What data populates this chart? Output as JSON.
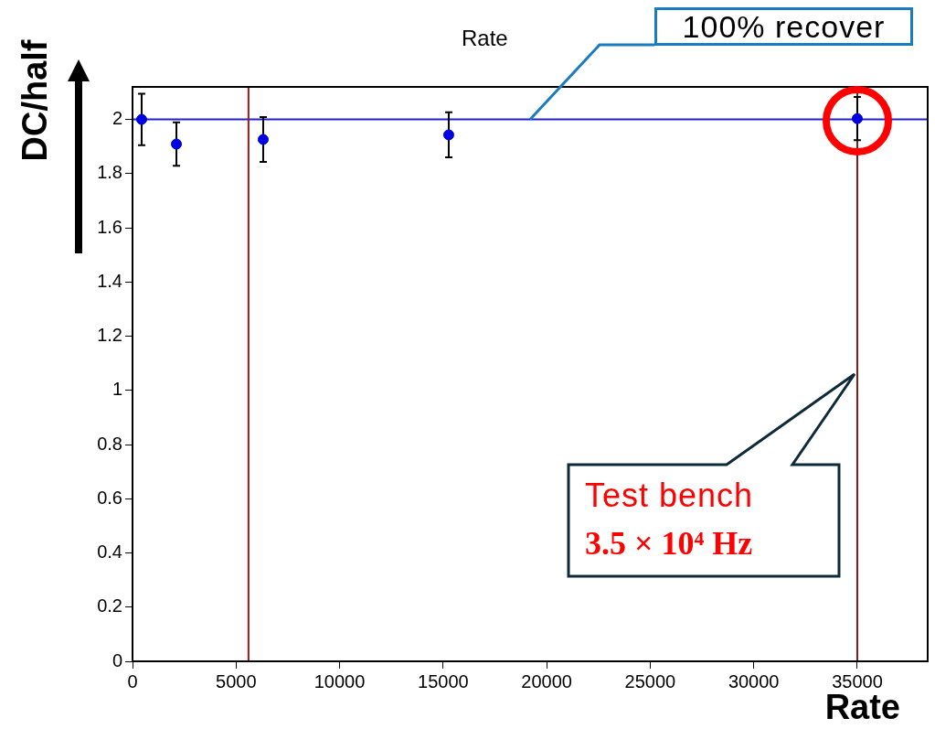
{
  "chart_data": {
    "type": "scatter",
    "title": "Rate",
    "xlabel": "Rate",
    "ylabel": "DC/half",
    "x": [
      440,
      2120,
      6310,
      15270,
      35000
    ],
    "values": [
      2.0,
      1.909,
      1.926,
      1.943,
      2.003
    ],
    "errors": [
      0.095,
      0.08,
      0.083,
      0.083,
      0.08
    ],
    "color": "#0000e0",
    "marker": "circle",
    "xlim": [
      0,
      38400
    ],
    "xticks": [
      0,
      5000,
      10000,
      15000,
      20000,
      25000,
      30000,
      35000
    ],
    "ylim": [
      0,
      2.12
    ],
    "yticks": [
      0,
      0.2,
      0.4,
      0.6,
      0.8,
      1,
      1.2,
      1.4,
      1.6,
      1.8,
      2
    ],
    "grid": false,
    "legend": false,
    "ref_lines": [
      {
        "axis": "y",
        "value": 2,
        "color": "#2020d0"
      },
      {
        "axis": "x",
        "value": 5600,
        "color": "#a01818"
      },
      {
        "axis": "x",
        "value": 35000,
        "color": "#801818"
      }
    ],
    "annotations": [
      {
        "text": "100% recover",
        "x": 19200,
        "y": 2
      },
      "Test bench",
      "3.5 × 10⁴ Hz"
    ]
  }
}
